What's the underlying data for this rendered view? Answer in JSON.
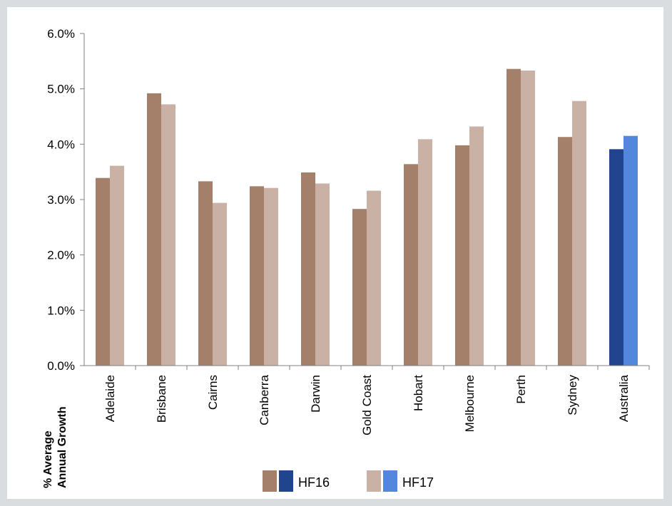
{
  "chart_data": {
    "type": "bar",
    "ylabel_lines": [
      "% Average",
      "Annual Growth"
    ],
    "ylim": [
      0,
      6
    ],
    "yticks": [
      "0.0%",
      "1.0%",
      "2.0%",
      "3.0%",
      "4.0%",
      "5.0%",
      "6.0%"
    ],
    "categories": [
      "Adelaide",
      "Brisbane",
      "Cairns",
      "Canberra",
      "Darwin",
      "Gold Coast",
      "Hobart",
      "Melbourne",
      "Perth",
      "Sydney",
      "Australia"
    ],
    "series": [
      {
        "name": "HF16",
        "values": [
          3.39,
          4.92,
          3.33,
          3.24,
          3.49,
          2.83,
          3.64,
          3.98,
          5.36,
          4.13,
          3.91
        ]
      },
      {
        "name": "HF17",
        "values": [
          3.61,
          4.72,
          2.94,
          3.21,
          3.29,
          3.16,
          4.09,
          4.32,
          5.33,
          4.78,
          4.15
        ]
      }
    ],
    "colors": {
      "HF16": "#a47f69",
      "HF17": "#c9b2a5",
      "HF16_highlight": "#21448f",
      "HF17_highlight": "#5386dd"
    },
    "highlight_category": "Australia",
    "grid": false,
    "legend_position": "bottom"
  }
}
